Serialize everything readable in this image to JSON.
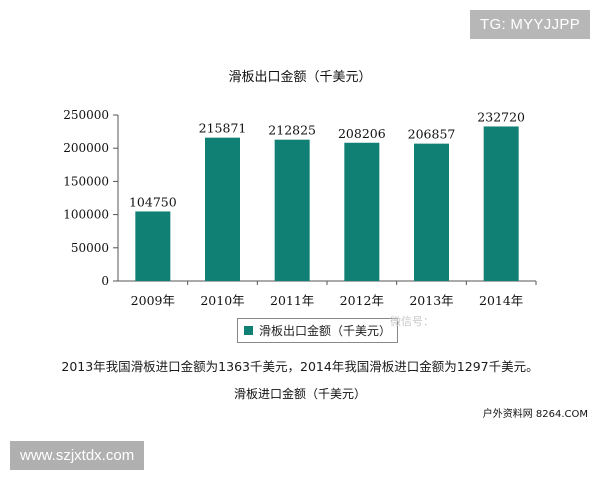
{
  "corner_tag": "TG: MYYJJPP",
  "footer_tag": "www.szjxtdx.com",
  "watermark_text": "微信号：",
  "colors": {
    "bar": "#0f8073",
    "axis": "#555555"
  },
  "chart_data": {
    "type": "bar",
    "title": "滑板出口金额（千美元）",
    "categories": [
      "2009年",
      "2010年",
      "2011年",
      "2012年",
      "2013年",
      "2014年"
    ],
    "series": [
      {
        "name": "滑板出口金额（千美元）",
        "values": [
          104750,
          215871,
          212825,
          208206,
          206857,
          232720
        ]
      }
    ],
    "data_labels": [
      "104750",
      "215871",
      "212825",
      "208206",
      "206857",
      "232720"
    ],
    "ylim": [
      0,
      250000
    ],
    "yticks": [
      0,
      50000,
      100000,
      150000,
      200000,
      250000
    ],
    "ytick_labels": [
      "0",
      "50000",
      "100000",
      "150000",
      "200000",
      "250000"
    ],
    "grid": false,
    "legend_position": "bottom"
  },
  "caption": "2013年我国滑板进口金额为1363千美元，2014年我国滑板进口金额为1297千美元。",
  "subtitle": "滑板进口金额（千美元）",
  "source": "户外资料网 8264.COM"
}
